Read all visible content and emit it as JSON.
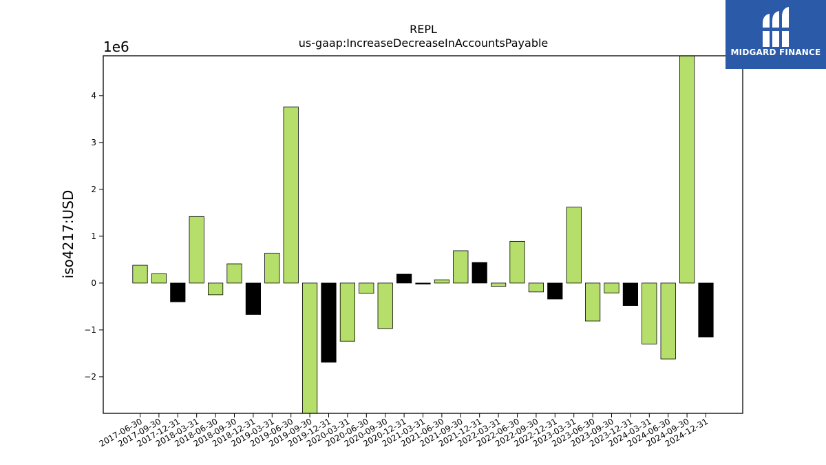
{
  "chart_data": {
    "type": "bar",
    "title": "REPL",
    "subtitle": "us-gaap:IncreaseDecreaseInAccountsPayable",
    "ylabel": "iso4217:USD",
    "xlabel": "",
    "offset_label": "1e6",
    "y_multiplier": 1000000,
    "ylim": [
      -2.78,
      4.85
    ],
    "yticks": [
      -2,
      -1,
      0,
      1,
      2,
      3,
      4
    ],
    "ytick_labels": [
      "−2",
      "−1",
      "0",
      "1",
      "2",
      "3",
      "4"
    ],
    "grid": false,
    "legend": "none",
    "colors": {
      "default": "#b5de6b",
      "highlight": "#000000",
      "edge": "#000000"
    },
    "categories": [
      "2017-06-30",
      "2017-09-30",
      "2017-12-31",
      "2018-03-31",
      "2018-06-30",
      "2018-09-30",
      "2018-12-31",
      "2019-03-31",
      "2019-06-30",
      "2019-09-30",
      "2019-12-31",
      "2020-03-31",
      "2020-06-30",
      "2020-09-30",
      "2020-12-31",
      "2021-03-31",
      "2021-06-30",
      "2021-09-30",
      "2021-12-31",
      "2022-03-31",
      "2022-06-30",
      "2022-09-30",
      "2022-12-31",
      "2023-03-31",
      "2023-06-30",
      "2023-09-30",
      "2023-12-31",
      "2024-03-31",
      "2024-06-30",
      "2024-09-30",
      "2024-12-31"
    ],
    "values": [
      0.38,
      0.2,
      -0.4,
      1.42,
      -0.25,
      0.41,
      -0.67,
      0.64,
      3.76,
      -2.78,
      -1.69,
      -1.24,
      -0.22,
      -0.97,
      0.19,
      -0.02,
      0.07,
      0.69,
      0.44,
      -0.07,
      0.89,
      -0.19,
      -0.34,
      1.62,
      -0.81,
      -0.21,
      -0.48,
      -1.3,
      -1.62,
      4.85,
      -1.15
    ],
    "highlight": [
      false,
      false,
      true,
      false,
      false,
      false,
      true,
      false,
      false,
      false,
      true,
      false,
      false,
      false,
      true,
      true,
      false,
      false,
      true,
      false,
      false,
      false,
      true,
      false,
      false,
      false,
      true,
      false,
      false,
      false,
      true
    ]
  },
  "logo": {
    "text": "MIDGARD FINANCE",
    "icon": "midgard-logo-icon",
    "background": "#2b5aa8"
  }
}
